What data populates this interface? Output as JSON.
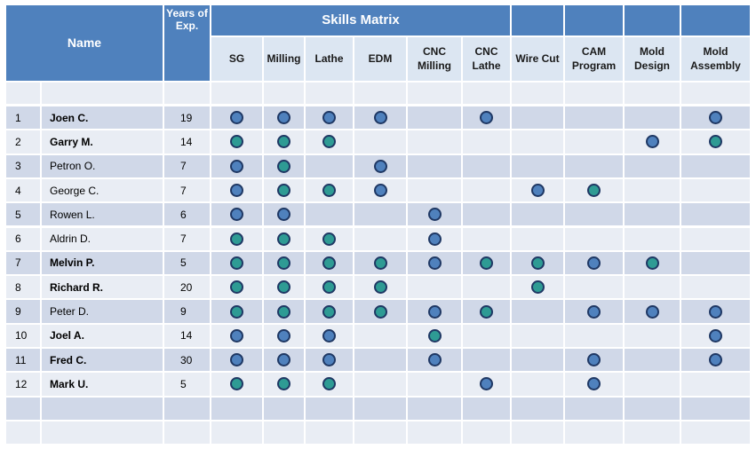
{
  "header": {
    "name_label": "Name",
    "years_label": "Years of Exp.",
    "matrix_title": "Skills Matrix"
  },
  "skills": [
    "SG",
    "Milling",
    "Lathe",
    "EDM",
    "CNC Milling",
    "CNC Lathe",
    "Wire Cut",
    "CAM Program",
    "Mold Design",
    "Mold Assembly"
  ],
  "colors": {
    "header_blue": "#4f81bd",
    "row_dark": "#d0d8e8",
    "row_light": "#e9edf4",
    "dot_blue": "#4f81bd",
    "dot_teal": "#2e9b94",
    "dot_border": "#1f3864"
  },
  "rows": [
    {
      "num": "1",
      "name": "Joen C.",
      "bold": true,
      "years": "19",
      "skills": [
        "blue",
        "blue",
        "blue",
        "blue",
        "",
        "blue",
        "",
        "",
        "",
        "blue"
      ]
    },
    {
      "num": "2",
      "name": "Garry M.",
      "bold": true,
      "years": "14",
      "skills": [
        "teal",
        "teal",
        "teal",
        "",
        "",
        "",
        "",
        "",
        "blue",
        "teal"
      ]
    },
    {
      "num": "3",
      "name": "Petron O.",
      "bold": false,
      "years": "7",
      "skills": [
        "blue",
        "teal",
        "",
        "blue",
        "",
        "",
        "",
        "",
        "",
        ""
      ]
    },
    {
      "num": "4",
      "name": "George C.",
      "bold": false,
      "years": "7",
      "skills": [
        "blue",
        "teal",
        "teal",
        "blue",
        "",
        "",
        "blue",
        "teal",
        "",
        ""
      ]
    },
    {
      "num": "5",
      "name": "Rowen L.",
      "bold": false,
      "years": "6",
      "skills": [
        "blue",
        "blue",
        "",
        "",
        "blue",
        "",
        "",
        "",
        "",
        ""
      ]
    },
    {
      "num": "6",
      "name": "Aldrin  D.",
      "bold": false,
      "years": "7",
      "skills": [
        "teal",
        "teal",
        "teal",
        "",
        "blue",
        "",
        "",
        "",
        "",
        ""
      ]
    },
    {
      "num": "7",
      "name": "Melvin P.",
      "bold": true,
      "years": "5",
      "skills": [
        "teal",
        "teal",
        "teal",
        "teal",
        "blue",
        "teal",
        "teal",
        "blue",
        "teal",
        ""
      ]
    },
    {
      "num": "8",
      "name": "Richard  R.",
      "bold": true,
      "years": "20",
      "skills": [
        "teal",
        "teal",
        "teal",
        "teal",
        "",
        "",
        "teal",
        "",
        "",
        ""
      ]
    },
    {
      "num": "9",
      "name": "Peter D.",
      "bold": false,
      "years": "9",
      "skills": [
        "teal",
        "teal",
        "teal",
        "teal",
        "blue",
        "teal",
        "",
        "blue",
        "blue",
        "blue"
      ]
    },
    {
      "num": "10",
      "name": "Joel A.",
      "bold": true,
      "years": "14",
      "skills": [
        "blue",
        "blue",
        "blue",
        "",
        "teal",
        "",
        "",
        "",
        "",
        "blue"
      ]
    },
    {
      "num": "11",
      "name": "Fred C.",
      "bold": true,
      "years": "30",
      "skills": [
        "blue",
        "blue",
        "blue",
        "",
        "blue",
        "",
        "",
        "blue",
        "",
        "blue"
      ]
    },
    {
      "num": "12",
      "name": "Mark U.",
      "bold": true,
      "years": "5",
      "skills": [
        "teal",
        "teal",
        "teal",
        "",
        "",
        "blue",
        "",
        "blue",
        "",
        ""
      ]
    }
  ]
}
